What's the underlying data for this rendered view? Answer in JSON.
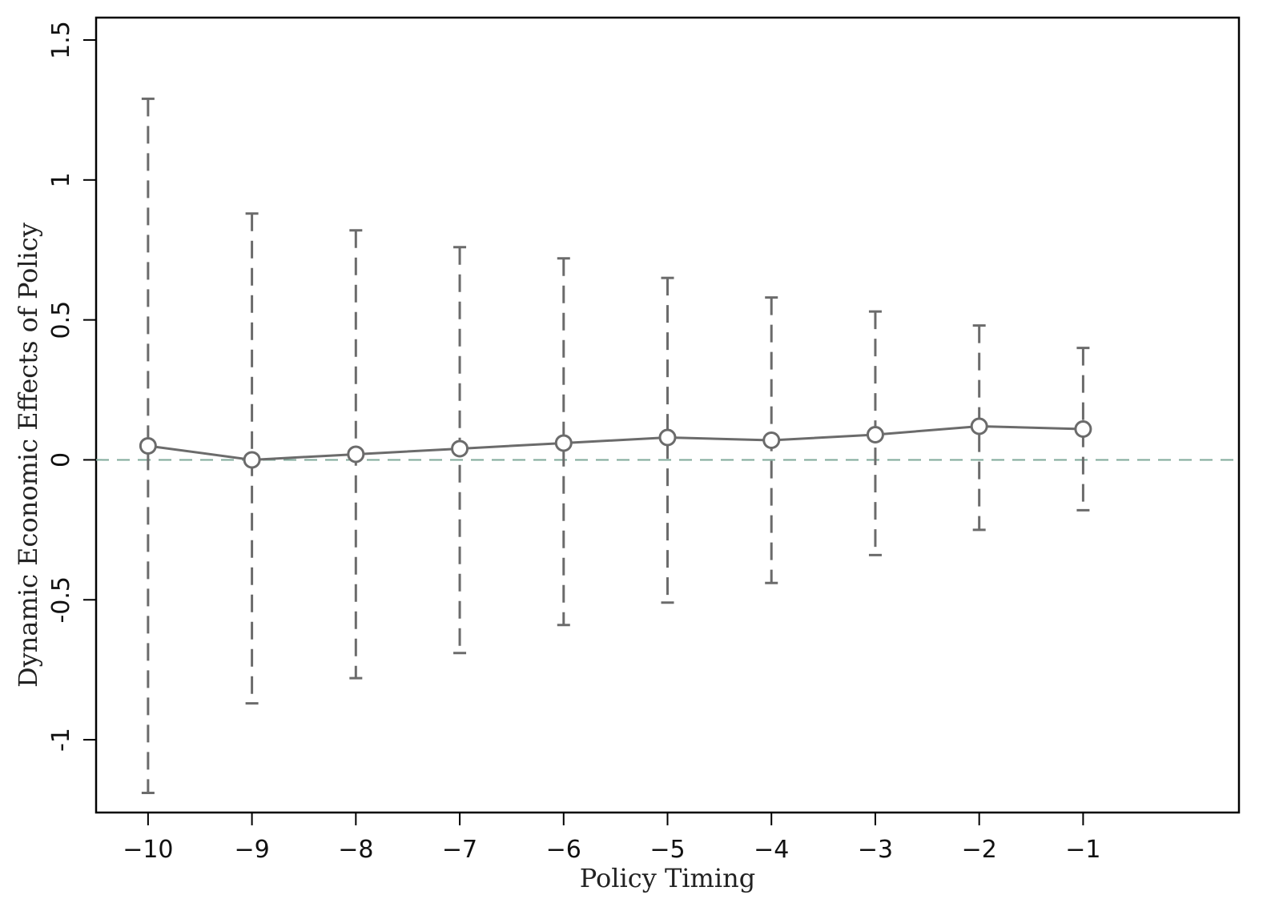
{
  "chart_data": {
    "type": "scatter",
    "title": "",
    "xlabel": "Policy Timing",
    "ylabel": "Dynamic Economic Effects of Policy",
    "x": [
      -10,
      -9,
      -8,
      -7,
      -6,
      -5,
      -4,
      -3,
      -2,
      -1
    ],
    "series": [
      {
        "values": [
          0.05,
          0.0,
          0.02,
          0.04,
          0.06,
          0.08,
          0.07,
          0.09,
          0.12,
          0.11
        ],
        "ci_lower": [
          -1.19,
          -0.87,
          -0.78,
          -0.69,
          -0.59,
          -0.51,
          -0.44,
          -0.34,
          -0.25,
          -0.18
        ],
        "ci_upper": [
          1.29,
          0.88,
          0.82,
          0.76,
          0.72,
          0.65,
          0.58,
          0.53,
          0.48,
          0.4
        ]
      }
    ],
    "xticks": [
      -10,
      -9,
      -8,
      -7,
      -6,
      -5,
      -4,
      -3,
      -2,
      -1
    ],
    "xtick_labels": [
      "−10",
      "−9",
      "−8",
      "−7",
      "−6",
      "−5",
      "−4",
      "−3",
      "−2",
      "−1"
    ],
    "yticks": [
      -1,
      -0.5,
      0,
      0.5,
      1,
      1.5
    ],
    "ytick_labels": [
      "-1",
      "-0.5",
      "0",
      "0.5",
      "1",
      "1.5"
    ],
    "xlim": [
      -10.5,
      0.5
    ],
    "ylim": [
      -1.26,
      1.58
    ],
    "reference_line": {
      "y": 0,
      "style": "dashed",
      "color": "#7fa89a"
    },
    "colors": {
      "series": "#6b6b6b",
      "axes": "#000000"
    },
    "marker": "hollow-circle",
    "error_bar_style": "dashed",
    "grid": false,
    "legend": false
  }
}
